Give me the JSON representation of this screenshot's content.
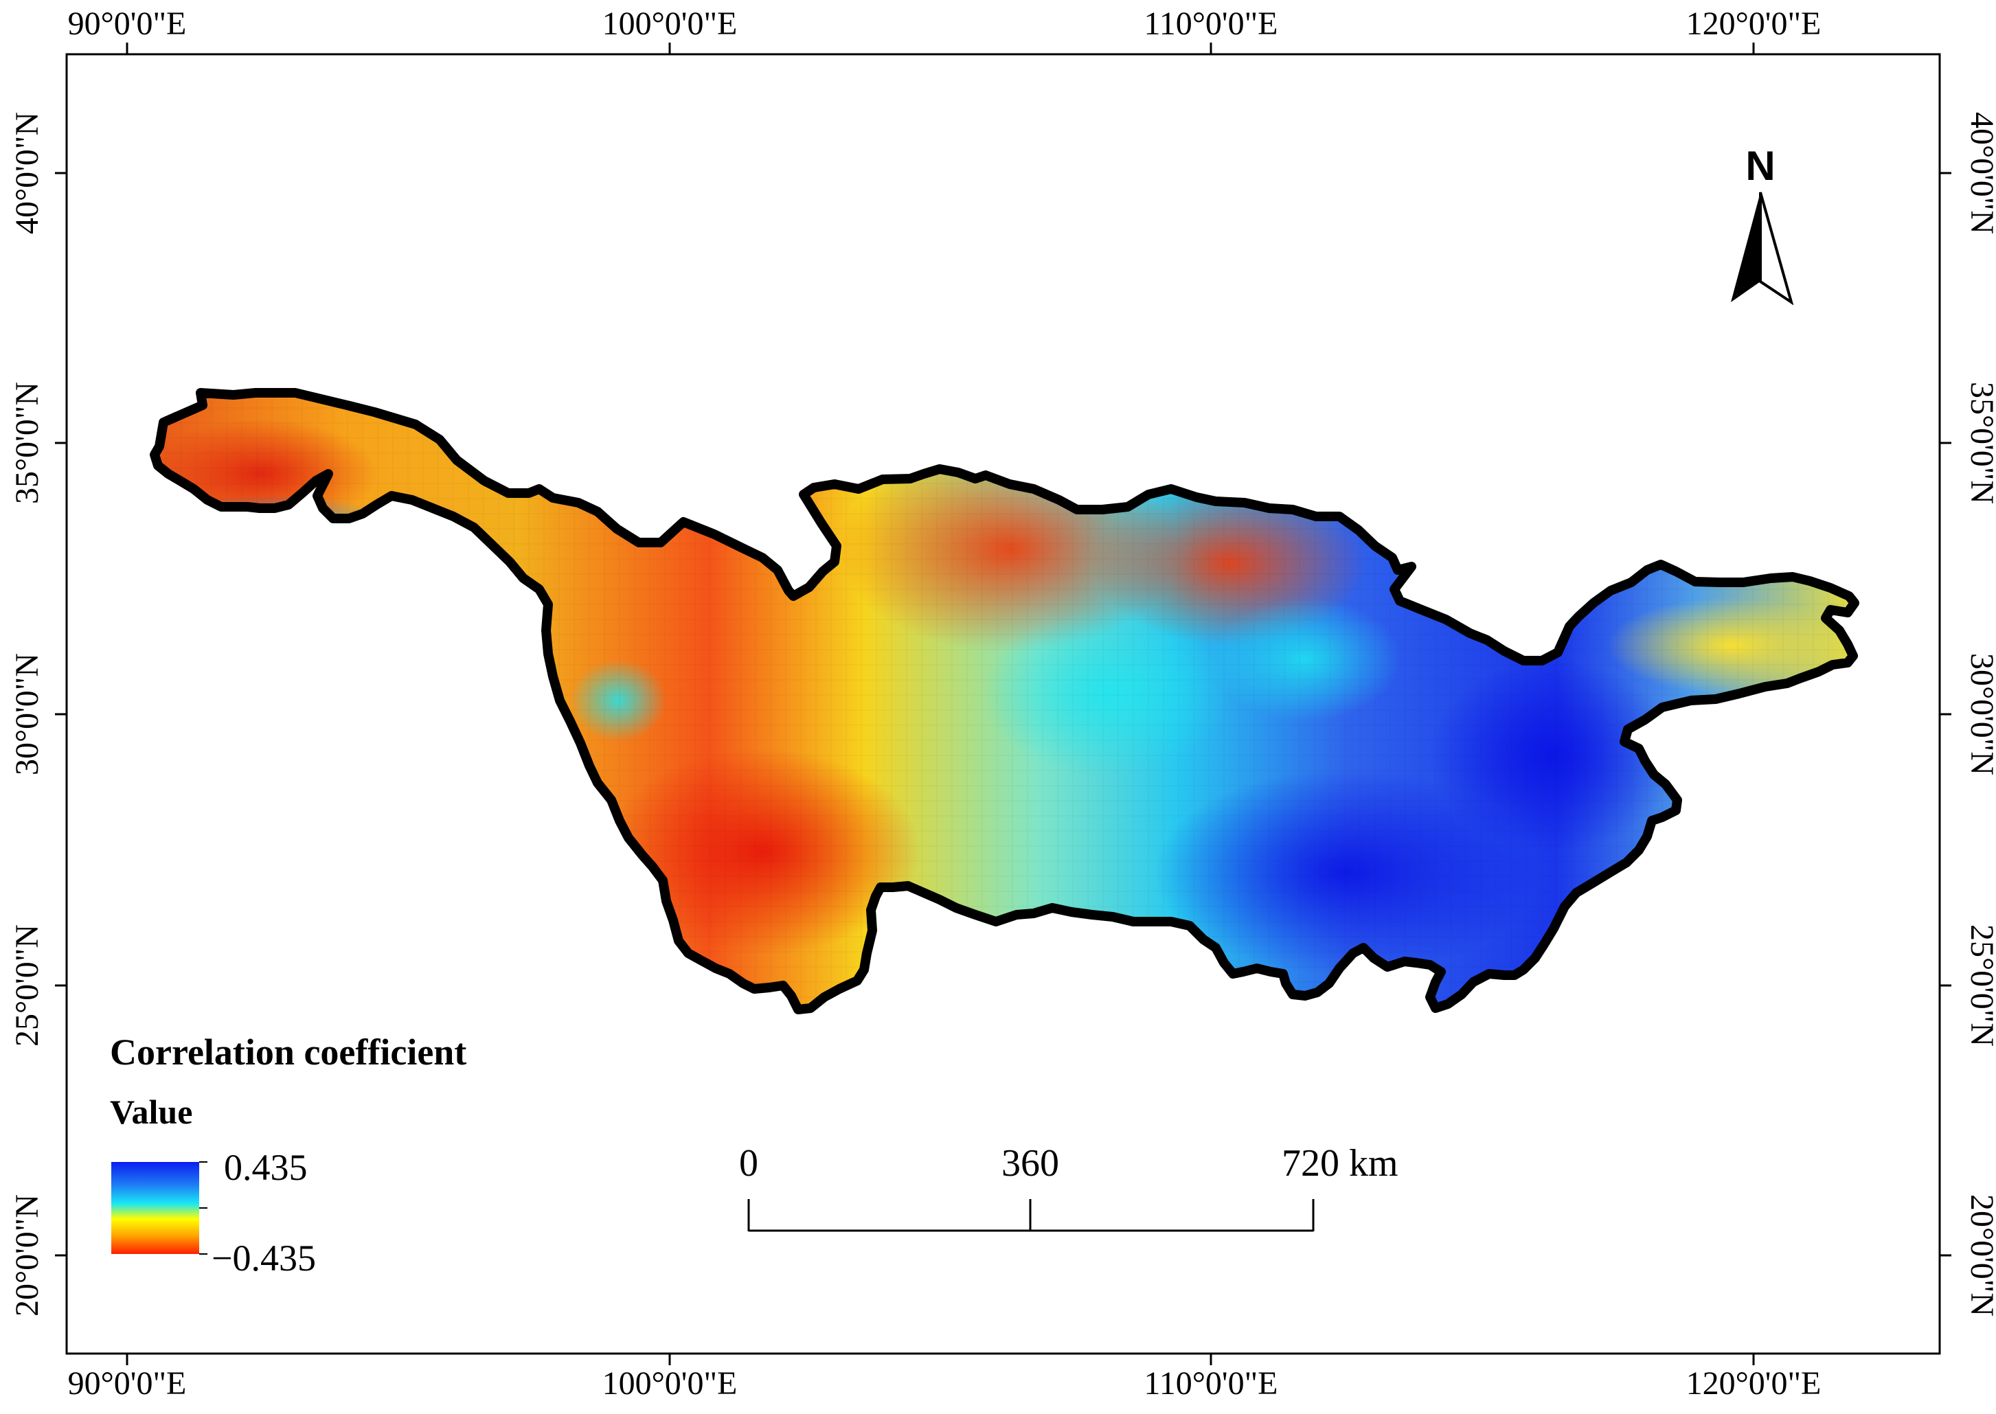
{
  "map": {
    "longitude_labels": [
      "90°0'0\"E",
      "100°0'0\"E",
      "110°0'0\"E",
      "120°0'0\"E"
    ],
    "latitude_labels": [
      "40°0'0\"N",
      "35°0'0\"N",
      "30°0'0\"N",
      "25°0'0\"N",
      "20°0'0\"N"
    ],
    "north_arrow_label": "N",
    "layer": "Correlation coefficient"
  },
  "legend": {
    "title": "Correlation coefficient",
    "subtitle": "Value",
    "max_label": "0.435",
    "min_label": "−0.435",
    "colors": [
      "#0a1ef0",
      "#1f7df5",
      "#19e6f5",
      "#ffff00",
      "#ffa500",
      "#ff1e00"
    ]
  },
  "scale_bar": {
    "labels": [
      "0",
      "360",
      "720 km"
    ]
  },
  "colors": {
    "boundary": "#000000",
    "frame": "#000000",
    "background": "#ffffff"
  }
}
